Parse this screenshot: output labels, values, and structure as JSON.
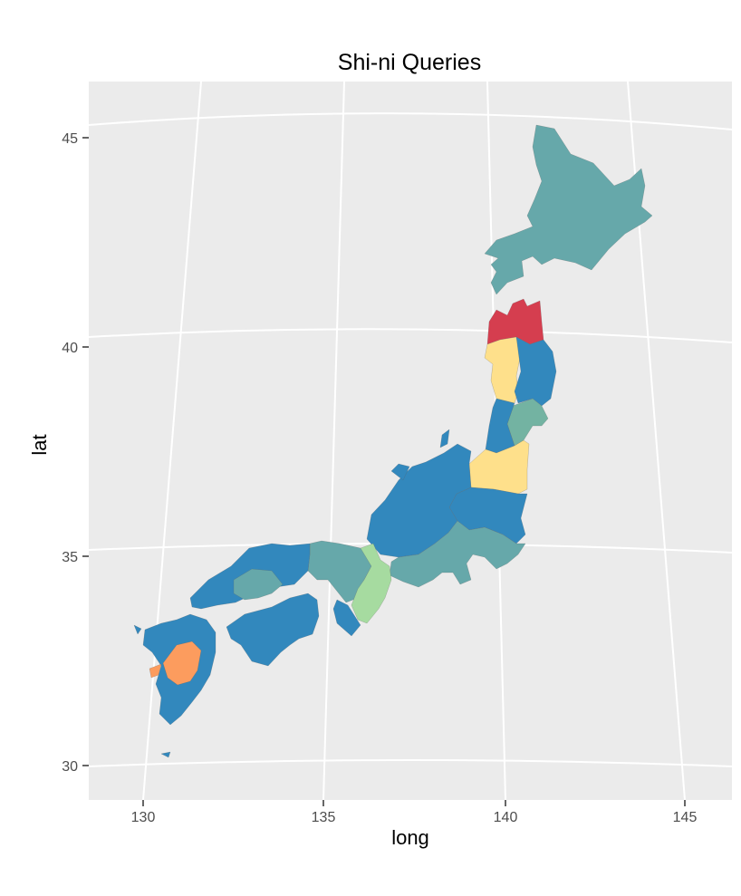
{
  "title": "Shi-ni Queries",
  "x_axis": {
    "label": "long",
    "ticks": [
      "130",
      "135",
      "140",
      "145"
    ]
  },
  "y_axis": {
    "label": "lat",
    "ticks": [
      "45",
      "40",
      "35",
      "30"
    ]
  },
  "colors": {
    "panel": "#ebebeb",
    "grid": "#ffffff",
    "blue": "#3288bd",
    "teal": "#66a8aa",
    "red": "#d53e4f",
    "yellow": "#fee08b",
    "light_green": "#a6dba0",
    "orange": "#fc9c5e",
    "sea_green": "#73b3a2"
  },
  "chart_data": {
    "type": "map",
    "region": "Japan prefectures",
    "title": "Shi-ni Queries",
    "xlabel": "long",
    "ylabel": "lat",
    "xlim": [
      128.5,
      146.2
    ],
    "ylim": [
      29.3,
      46.3
    ],
    "projection": "conic",
    "grid": true,
    "legend": "none",
    "regions": [
      {
        "name": "Hokkaido",
        "fill": "teal"
      },
      {
        "name": "Aomori",
        "fill": "red"
      },
      {
        "name": "Akita",
        "fill": "yellow"
      },
      {
        "name": "Iwate",
        "fill": "blue"
      },
      {
        "name": "Yamagata",
        "fill": "blue"
      },
      {
        "name": "Miyagi",
        "fill": "sea_green"
      },
      {
        "name": "Fukushima",
        "fill": "yellow"
      },
      {
        "name": "Kanto",
        "fill": "blue"
      },
      {
        "name": "Shizuoka/Yamanashi/Kanagawa",
        "fill": "teal"
      },
      {
        "name": "Chubu",
        "fill": "blue"
      },
      {
        "name": "Kinki",
        "fill": "teal"
      },
      {
        "name": "Mie/Nara",
        "fill": "light_green"
      },
      {
        "name": "Chugoku",
        "fill": "blue"
      },
      {
        "name": "Hiroshima",
        "fill": "teal"
      },
      {
        "name": "Shikoku",
        "fill": "blue"
      },
      {
        "name": "Kyushu",
        "fill": "blue"
      },
      {
        "name": "Kumamoto",
        "fill": "orange"
      },
      {
        "name": "Okinawa",
        "fill": "blue"
      }
    ]
  }
}
